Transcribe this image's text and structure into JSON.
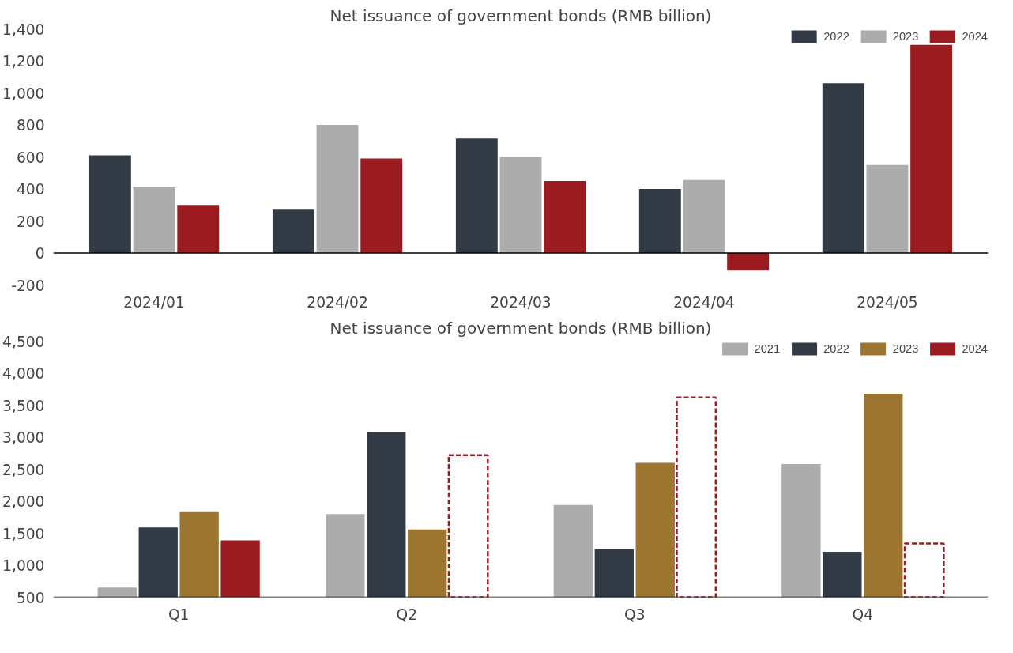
{
  "chart_data": [
    {
      "type": "bar",
      "title": "Net issuance of government bonds (RMB billion)",
      "categories": [
        "2024/01",
        "2024/02",
        "2024/03",
        "2024/04",
        "2024/05"
      ],
      "series": [
        {
          "name": "2022",
          "color": "#323a45",
          "values": [
            610,
            270,
            715,
            400,
            1060
          ]
        },
        {
          "name": "2023",
          "color": "#acacac",
          "values": [
            410,
            800,
            600,
            455,
            550
          ]
        },
        {
          "name": "2024",
          "color": "#9b1c20",
          "values": [
            300,
            590,
            450,
            -110,
            1300
          ]
        }
      ],
      "ylim": [
        -200,
        1400
      ],
      "yticks": [
        {
          "value": -200,
          "label": "-200"
        },
        0,
        200,
        400,
        600,
        800,
        {
          "value": 1000,
          "label": "1,000"
        },
        {
          "value": 1200,
          "label": "1,200"
        },
        {
          "value": 1400,
          "label": "1,400"
        }
      ],
      "legend": "top right"
    },
    {
      "type": "bar",
      "title": "Net issuance of government bonds (RMB billion)",
      "categories": [
        "Q1",
        "Q2",
        "Q3",
        "Q4"
      ],
      "series": [
        {
          "name": "2021",
          "color": "#acacac",
          "values": [
            650,
            1800,
            1940,
            2580
          ]
        },
        {
          "name": "2022",
          "color": "#323a45",
          "values": [
            1590,
            3080,
            1250,
            1210
          ]
        },
        {
          "name": "2023",
          "color": "#9c7630",
          "values": [
            1830,
            1560,
            2600,
            3680
          ]
        },
        {
          "name": "2024",
          "color": "#9b1c20",
          "values": [
            1390,
            null,
            null,
            null
          ]
        },
        {
          "color": "#9b1c20",
          "line_style": "dashed",
          "values": [
            null,
            2720,
            3620,
            1340
          ]
        }
      ],
      "ylim": [
        500,
        4500
      ],
      "yticks": [
        500,
        {
          "value": 1000,
          "label": "1,000"
        },
        {
          "value": 1500,
          "label": "1,500"
        },
        {
          "value": 2000,
          "label": "2,000"
        },
        {
          "value": 2500,
          "label": "2,500"
        },
        {
          "value": 3000,
          "label": "3,000"
        },
        {
          "value": 3500,
          "label": "3,500"
        },
        {
          "value": 4000,
          "label": "4,000"
        },
        {
          "value": 4500,
          "label": "4,500"
        }
      ],
      "legend": "top right"
    }
  ]
}
